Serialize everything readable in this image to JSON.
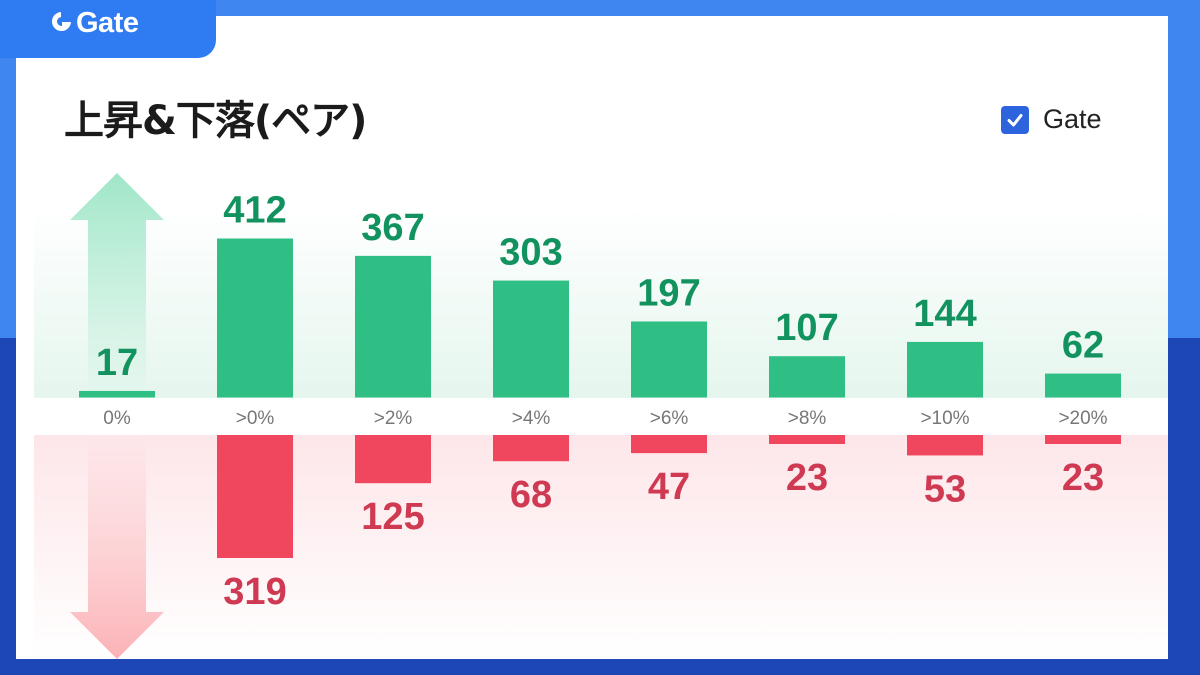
{
  "brand": {
    "logo_text": "Gate",
    "accent": "#2f7bf2"
  },
  "header": {
    "title": "上昇&下落(ペア)"
  },
  "legend": {
    "label": "Gate",
    "checked": true,
    "check_color": "#2d63dc"
  },
  "decor": {
    "up_arrow": "up-arrow-icon",
    "down_arrow": "down-arrow-icon"
  },
  "chart_data": {
    "type": "bar",
    "title": "上昇&下落(ペア)",
    "categories": [
      "0%",
      ">0%",
      ">2%",
      ">4%",
      ">6%",
      ">8%",
      ">10%",
      ">20%"
    ],
    "series": [
      {
        "name": "Gate",
        "direction": "up",
        "color": "#2fbf85",
        "label_color": "#12925e",
        "values": [
          17,
          412,
          367,
          303,
          197,
          107,
          144,
          62
        ]
      },
      {
        "direction": "down",
        "color": "#f0475e",
        "label_color": "#cf3a52",
        "values": [
          null,
          319,
          125,
          68,
          47,
          23,
          53,
          23
        ]
      }
    ],
    "grid": false,
    "legend_position": "top-right"
  }
}
